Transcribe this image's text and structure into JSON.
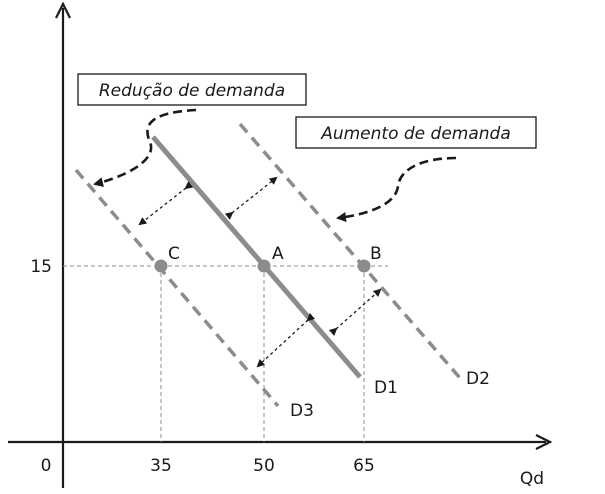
{
  "diagram": {
    "annotations": {
      "decrease": "Redução de demanda",
      "increase": "Aumento de demanda"
    },
    "axes": {
      "origin": "0",
      "x_label": "Qd",
      "x_ticks": [
        "35",
        "50",
        "65"
      ],
      "y_ticks": [
        "15"
      ]
    },
    "points": [
      {
        "id": "C",
        "label": "C",
        "qd": 35,
        "price": 15
      },
      {
        "id": "A",
        "label": "A",
        "qd": 50,
        "price": 15
      },
      {
        "id": "B",
        "label": "B",
        "qd": 65,
        "price": 15
      }
    ],
    "curves": [
      {
        "id": "D1",
        "label": "D1",
        "style": "solid"
      },
      {
        "id": "D2",
        "label": "D2",
        "style": "dashed"
      },
      {
        "id": "D3",
        "label": "D3",
        "style": "dashed"
      }
    ],
    "colors": {
      "curve": "#8c8c8c",
      "axis": "#1a1a1a",
      "guide": "#8c8c8c",
      "point": "#8c8c8c"
    }
  }
}
